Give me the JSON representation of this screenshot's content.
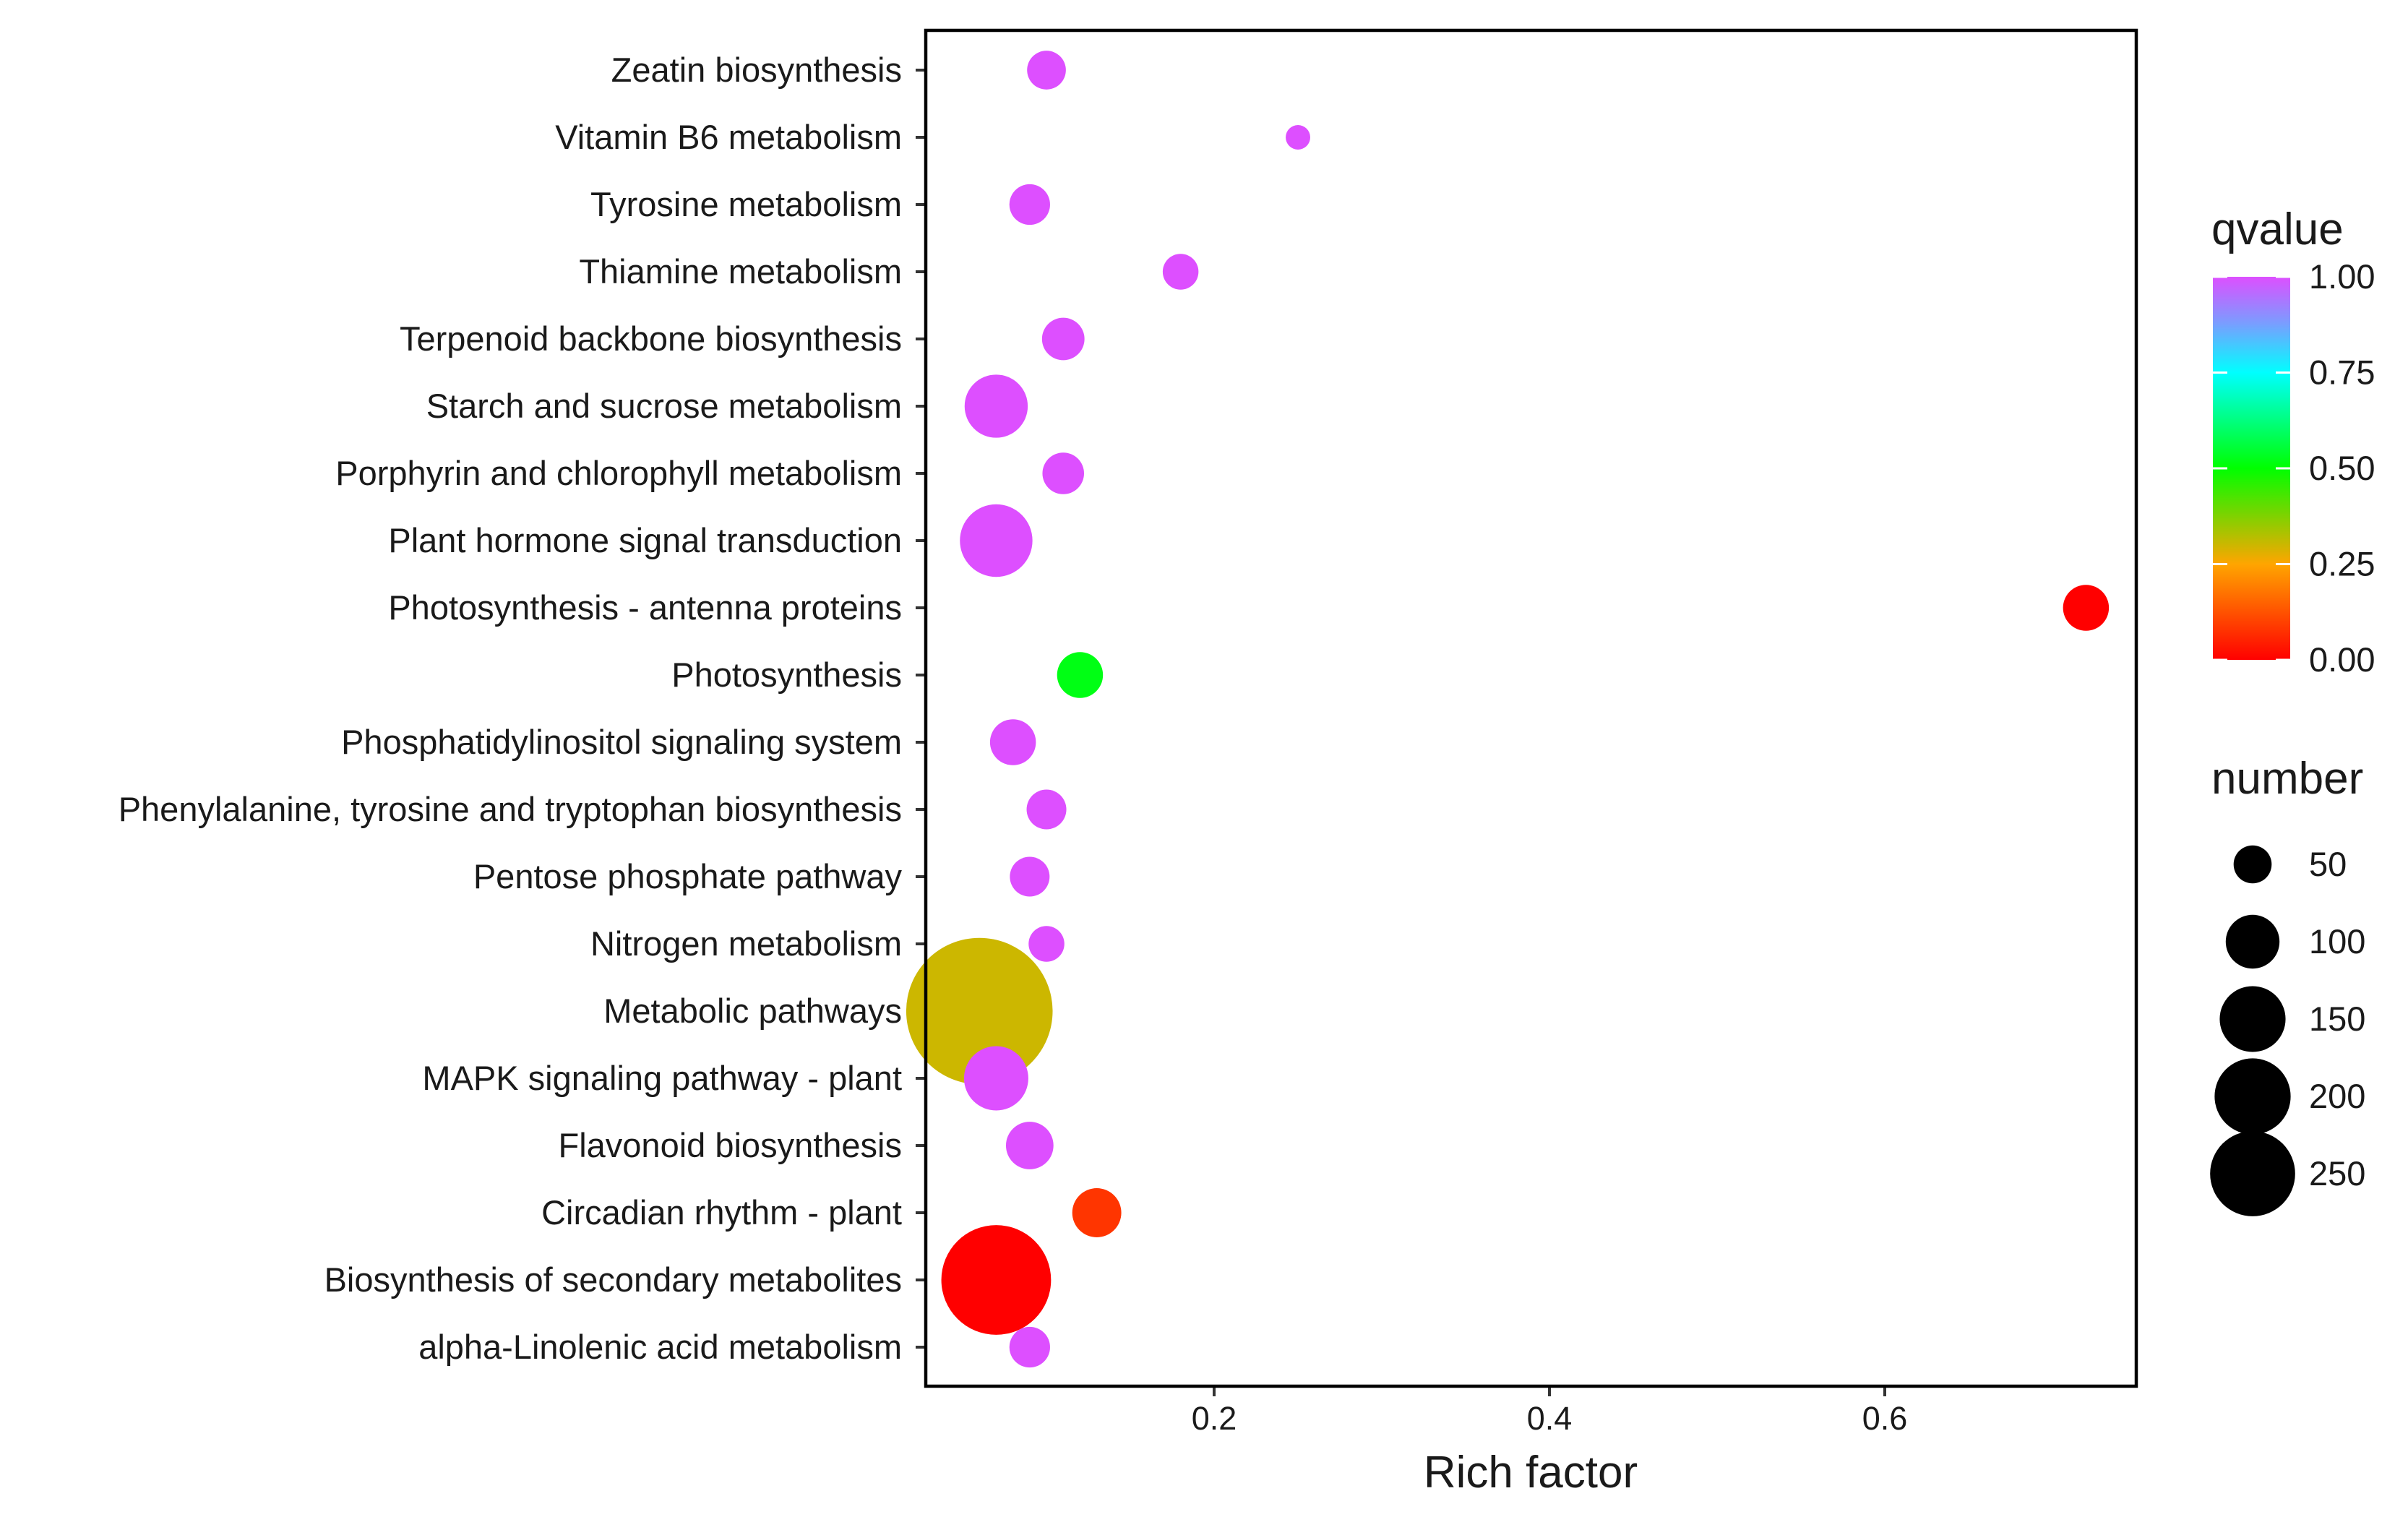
{
  "chart_data": {
    "type": "scatter",
    "title": "",
    "xlabel": "Rich factor",
    "ylabel": "",
    "xlim": [
      0.028,
      0.75
    ],
    "xticks": [
      0.2,
      0.4,
      0.6
    ],
    "xtick_labels": [
      "0.2",
      "0.4",
      "0.6"
    ],
    "grid": false,
    "categories": [
      "Zeatin biosynthesis",
      "Vitamin B6 metabolism",
      "Tyrosine metabolism",
      "Thiamine metabolism",
      "Terpenoid backbone biosynthesis",
      "Starch and sucrose metabolism",
      "Porphyrin and chlorophyll metabolism",
      "Plant hormone signal transduction",
      "Photosynthesis - antenna proteins",
      "Photosynthesis",
      "Phosphatidylinositol signaling system",
      "Phenylalanine, tyrosine and tryptophan biosynthesis",
      "Pentose phosphate pathway",
      "Nitrogen metabolism",
      "Metabolic pathways",
      "MAPK signaling pathway - plant",
      "Flavonoid biosynthesis",
      "Circadian rhythm - plant",
      "Biosynthesis of secondary metabolites",
      "alpha-Linolenic acid metabolism"
    ],
    "points": [
      {
        "pathway": "Zeatin biosynthesis",
        "rich_factor": 0.1,
        "number": 20,
        "qvalue": 1.0
      },
      {
        "pathway": "Vitamin B6 metabolism",
        "rich_factor": 0.25,
        "number": 8,
        "qvalue": 1.0
      },
      {
        "pathway": "Tyrosine metabolism",
        "rich_factor": 0.09,
        "number": 22,
        "qvalue": 1.0
      },
      {
        "pathway": "Thiamine metabolism",
        "rich_factor": 0.18,
        "number": 17,
        "qvalue": 1.0
      },
      {
        "pathway": "Terpenoid backbone biosynthesis",
        "rich_factor": 0.11,
        "number": 24,
        "qvalue": 1.0
      },
      {
        "pathway": "Starch and sucrose metabolism",
        "rich_factor": 0.07,
        "number": 53,
        "qvalue": 1.0
      },
      {
        "pathway": "Porphyrin and chlorophyll metabolism",
        "rich_factor": 0.11,
        "number": 23,
        "qvalue": 1.0
      },
      {
        "pathway": "Plant hormone signal transduction",
        "rich_factor": 0.07,
        "number": 70,
        "qvalue": 1.0
      },
      {
        "pathway": "Photosynthesis - antenna proteins",
        "rich_factor": 0.72,
        "number": 28,
        "qvalue": 0.0
      },
      {
        "pathway": "Photosynthesis",
        "rich_factor": 0.12,
        "number": 28,
        "qvalue": 0.52
      },
      {
        "pathway": "Phosphatidylinositol signaling system",
        "rich_factor": 0.08,
        "number": 28,
        "qvalue": 1.0
      },
      {
        "pathway": "Phenylalanine, tyrosine and tryptophan biosynthesis",
        "rich_factor": 0.1,
        "number": 21,
        "qvalue": 1.0
      },
      {
        "pathway": "Pentose phosphate pathway",
        "rich_factor": 0.09,
        "number": 21,
        "qvalue": 1.0
      },
      {
        "pathway": "Nitrogen metabolism",
        "rich_factor": 0.1,
        "number": 17,
        "qvalue": 1.0
      },
      {
        "pathway": "Metabolic pathways",
        "rich_factor": 0.06,
        "number": 285,
        "qvalue": 0.3
      },
      {
        "pathway": "MAPK signaling pathway - plant",
        "rich_factor": 0.07,
        "number": 55,
        "qvalue": 1.0
      },
      {
        "pathway": "Flavonoid biosynthesis",
        "rich_factor": 0.09,
        "number": 30,
        "qvalue": 1.0
      },
      {
        "pathway": "Circadian rhythm - plant",
        "rich_factor": 0.13,
        "number": 32,
        "qvalue": 0.08
      },
      {
        "pathway": "Biosynthesis of secondary metabolites",
        "rich_factor": 0.07,
        "number": 160,
        "qvalue": 0.0
      },
      {
        "pathway": "alpha-Linolenic acid metabolism",
        "rich_factor": 0.09,
        "number": 22,
        "qvalue": 1.0
      }
    ],
    "color_legend": {
      "title": "qvalue",
      "ticks": [
        1.0,
        0.75,
        0.5,
        0.25,
        0.0
      ],
      "tick_labels": [
        "1.00",
        "0.75",
        "0.50",
        "0.25",
        "0.00"
      ],
      "colormap": [
        "#ff0000",
        "#ffa500",
        "#00ff00",
        "#00ffff",
        "#7b9cff",
        "#dd4fff"
      ]
    },
    "size_legend": {
      "title": "number",
      "values": [
        50,
        100,
        150,
        200,
        250
      ],
      "labels": [
        "50",
        "100",
        "150",
        "200",
        "250"
      ],
      "color": "#000000"
    }
  }
}
